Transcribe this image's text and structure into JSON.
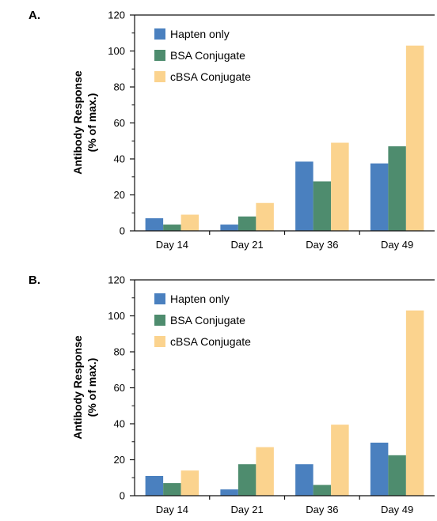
{
  "colors": {
    "hapten": "#4a80bf",
    "bsa": "#4e8c6e",
    "cbsa": "#fbd38e",
    "axis": "#111111"
  },
  "chart_data": [
    {
      "panel_label": "A.",
      "type": "bar",
      "categories": [
        "Day 14",
        "Day 21",
        "Day 36",
        "Day 49"
      ],
      "ylabel_lines": [
        "Antibody Response",
        "(% of max.)"
      ],
      "ylim": [
        0,
        120
      ],
      "yticks": [
        0,
        20,
        40,
        60,
        80,
        100,
        120
      ],
      "grid": false,
      "legend_position": "top-left",
      "series": [
        {
          "name": "Hapten only",
          "color_key": "hapten",
          "values": [
            7,
            3.5,
            38.5,
            37.5
          ]
        },
        {
          "name": "BSA Conjugate",
          "color_key": "bsa",
          "values": [
            3.5,
            8,
            27.5,
            47
          ]
        },
        {
          "name": "cBSA Conjugate",
          "color_key": "cbsa",
          "values": [
            9,
            15.5,
            49,
            103
          ]
        }
      ]
    },
    {
      "panel_label": "B.",
      "type": "bar",
      "categories": [
        "Day 14",
        "Day 21",
        "Day 36",
        "Day 49"
      ],
      "ylabel_lines": [
        "Antibody Response",
        "(% of max.)"
      ],
      "ylim": [
        0,
        120
      ],
      "yticks": [
        0,
        20,
        40,
        60,
        80,
        100,
        120
      ],
      "grid": false,
      "legend_position": "top-left",
      "series": [
        {
          "name": "Hapten only",
          "color_key": "hapten",
          "values": [
            11,
            3.5,
            17.5,
            29.5
          ]
        },
        {
          "name": "BSA Conjugate",
          "color_key": "bsa",
          "values": [
            7,
            17.5,
            6,
            22.5
          ]
        },
        {
          "name": "cBSA Conjugate",
          "color_key": "cbsa",
          "values": [
            14,
            27,
            39.5,
            103
          ]
        }
      ]
    }
  ]
}
